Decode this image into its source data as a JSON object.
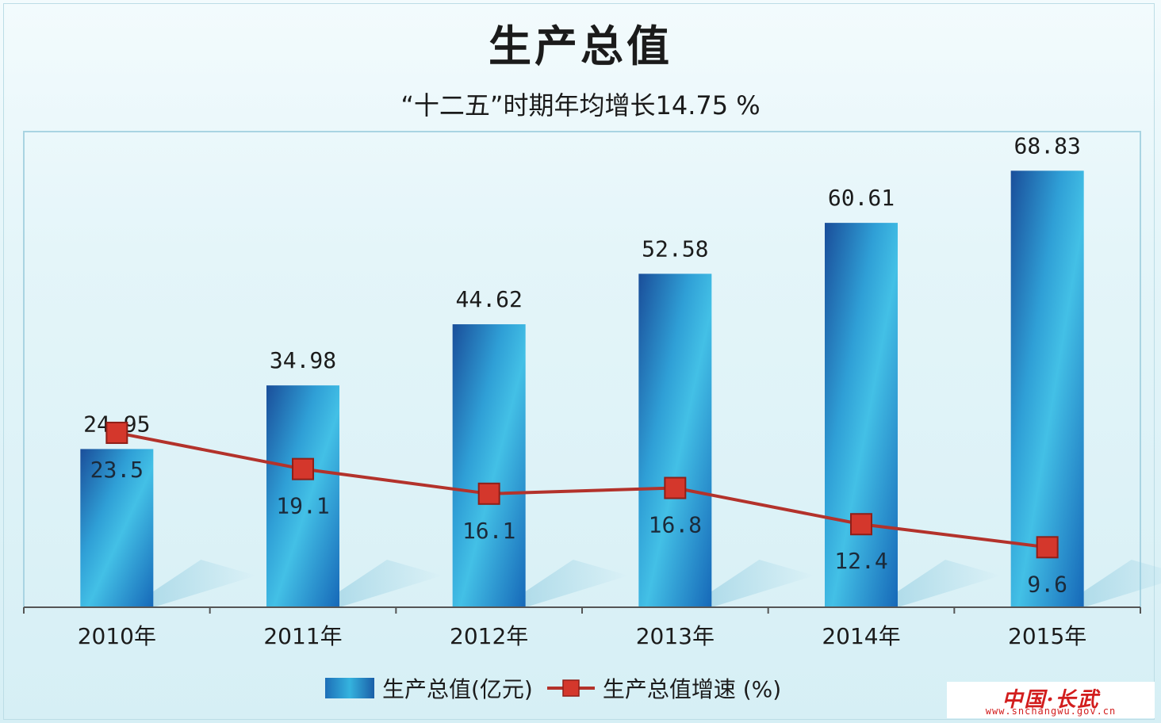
{
  "chart_data": {
    "type": "bar",
    "title": "生产总值",
    "subtitle": "“十二五”时期年均增长14.75 %",
    "categories": [
      "2010年",
      "2011年",
      "2012年",
      "2013年",
      "2014年",
      "2015年"
    ],
    "series": [
      {
        "name": "生产总值(亿元)",
        "kind": "bar",
        "values": [
          24.95,
          34.98,
          44.62,
          52.58,
          60.61,
          68.83
        ],
        "labels": [
          "24.95",
          "34.98",
          "44.62",
          "52.58",
          "60.61",
          "68.83"
        ],
        "color": "#2a93d0"
      },
      {
        "name": "生产总值增速 (%)",
        "kind": "line",
        "values": [
          23.5,
          19.1,
          16.1,
          16.8,
          12.4,
          9.6
        ],
        "labels": [
          "23.5",
          "19.1",
          "16.1",
          "16.8",
          "12.4",
          "9.6"
        ],
        "color": "#b3322b"
      }
    ],
    "grid": false,
    "legend_position": "bottom"
  },
  "legend": {
    "bar_label": "生产总值(亿元)",
    "line_label": "生产总值增速 (%)"
  },
  "watermark": {
    "brand": "中国·长武",
    "url": "www.snchangwu.gov.cn"
  }
}
